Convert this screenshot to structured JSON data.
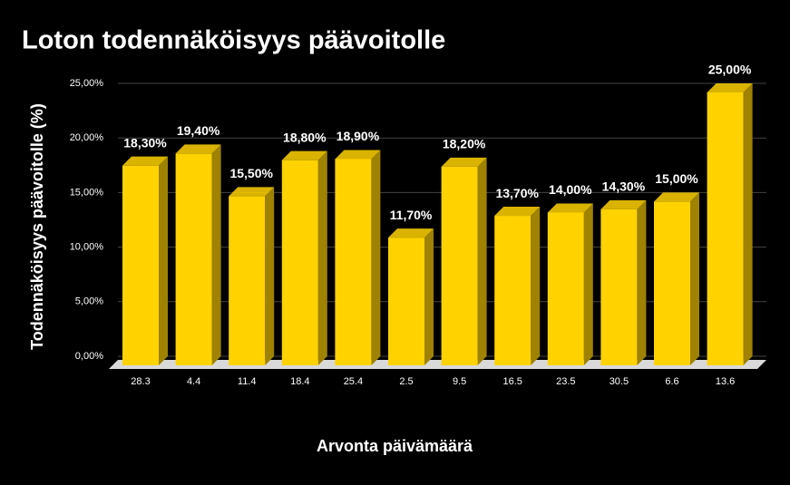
{
  "chart_data": {
    "type": "bar",
    "title": "Loton todennäköisyys päävoitolle",
    "x_label": "Arvonta päivämäärä",
    "y_label": "Todennäköisyys päävoitolle (%)",
    "categories": [
      "28.3",
      "4.4",
      "11.4",
      "18.4",
      "25.4",
      "2.5",
      "9.5",
      "16.5",
      "23.5",
      "30.5",
      "6.6",
      "13.6"
    ],
    "values": [
      18.3,
      19.4,
      15.5,
      18.8,
      18.9,
      11.7,
      18.2,
      13.7,
      14.0,
      14.3,
      15.0,
      25.0
    ],
    "value_labels": [
      "18,30%",
      "19,40%",
      "15,50%",
      "18,80%",
      "18,90%",
      "11,70%",
      "18,20%",
      "13,70%",
      "14,00%",
      "14,30%",
      "15,00%",
      "25,00%"
    ],
    "color": "#ffd200",
    "ylim": [
      0,
      25
    ],
    "yticks": [
      {
        "value": 0,
        "label": "0,00%"
      },
      {
        "value": 5,
        "label": "5,00%"
      },
      {
        "value": 10,
        "label": "10,00%"
      },
      {
        "value": 15,
        "label": "15,00%"
      },
      {
        "value": 20,
        "label": "20,00%"
      },
      {
        "value": 25,
        "label": "25,00%"
      }
    ],
    "grid": true
  }
}
